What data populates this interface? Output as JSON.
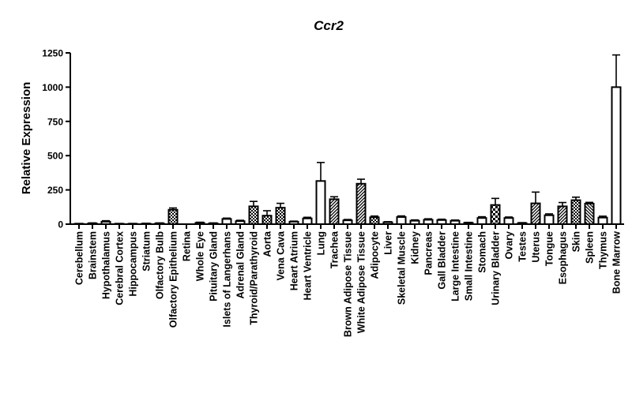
{
  "chart_data": {
    "type": "bar",
    "title": "Ccr2",
    "xlabel": "",
    "ylabel": "Relative Expression",
    "ylim": [
      0,
      1250
    ],
    "yticks": [
      0,
      250,
      500,
      750,
      1000,
      1250
    ],
    "grid": false,
    "legend": "none",
    "bar_color": "#000000",
    "categories": [
      "Cerebellum",
      "Brainstem",
      "Hypothalamus",
      "Cerebral Cortex",
      "Hippocampus",
      "Striatum",
      "Olfactory Bulb",
      "Olfactory Epithelium",
      "Retina",
      "Whole Eye",
      "Pituitary Gland",
      "Islets of Langerhans",
      "Adrenal Gland",
      "Thyroid/Parathyroid",
      "Aorta",
      "Vena Cava",
      "Heart Atrium",
      "Heart Ventricle",
      "Lung",
      "Trachea",
      "Brown Adipose Tissue",
      "White Adipose Tissue",
      "Adipocyte",
      "Liver",
      "Skeletal Muscle",
      "Kidney",
      "Pancreas",
      "Gall Bladder",
      "Large Intestine",
      "Small Intestine",
      "Stomach",
      "Urinary Bladder",
      "Ovary",
      "Testes",
      "Uterus",
      "Tongue",
      "Esophagus",
      "Skin",
      "Spleen",
      "Thymus",
      "Bone Marrow"
    ],
    "values": [
      3,
      6,
      18,
      3,
      3,
      4,
      6,
      105,
      0,
      10,
      6,
      38,
      22,
      130,
      62,
      120,
      18,
      42,
      315,
      182,
      28,
      295,
      50,
      14,
      52,
      25,
      32,
      30,
      25,
      10,
      45,
      140,
      45,
      8,
      152,
      65,
      130,
      175,
      150,
      48,
      1000
    ],
    "errors": [
      2,
      3,
      7,
      2,
      2,
      2,
      3,
      13,
      0,
      4,
      3,
      6,
      6,
      36,
      36,
      32,
      4,
      8,
      135,
      18,
      6,
      33,
      9,
      4,
      8,
      6,
      7,
      6,
      5,
      3,
      9,
      48,
      7,
      3,
      82,
      10,
      28,
      22,
      9,
      10,
      235
    ],
    "patterns": [
      "solid",
      "solid",
      "solid",
      "solid",
      "solid",
      "solid",
      "solid",
      "cross",
      "solid",
      "solid",
      "solid",
      "solid",
      "solid",
      "cross",
      "cross",
      "cross",
      "solid",
      "solid",
      "solid",
      "diag",
      "solid",
      "diag",
      "cross",
      "solid",
      "solid",
      "solid",
      "solid",
      "solid",
      "solid",
      "solid",
      "solid",
      "check",
      "solid",
      "solid",
      "diag",
      "solid",
      "diag",
      "cross",
      "diagr",
      "solid",
      "solid"
    ]
  }
}
